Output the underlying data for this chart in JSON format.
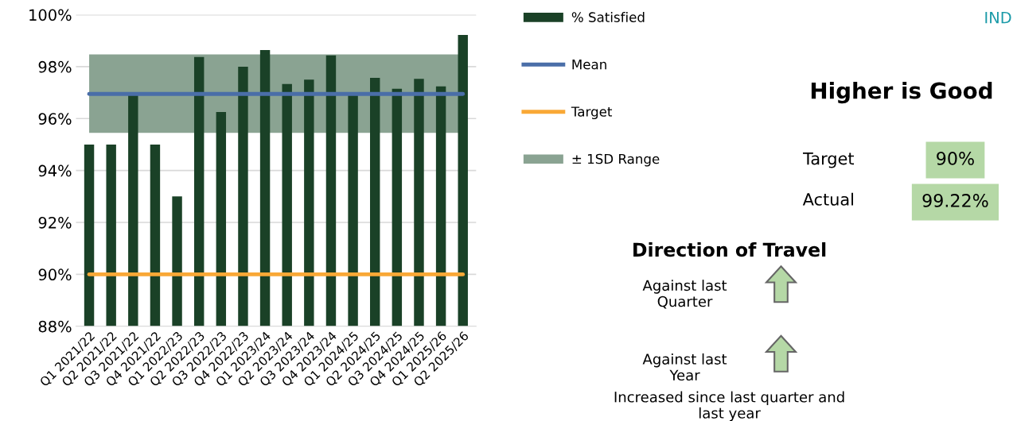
{
  "chart_data": {
    "type": "bar",
    "categories": [
      "Q1 2021/22",
      "Q2 2021/22",
      "Q3 2021/22",
      "Q4 2021/22",
      "Q1 2022/23",
      "Q2 2022/23",
      "Q3 2022/23",
      "Q4 2022/23",
      "Q1 2023/24",
      "Q2 2023/24",
      "Q3 2023/24",
      "Q4 2023/24",
      "Q1 2024/25",
      "Q2 2024/25",
      "Q3 2024/25",
      "Q4 2024/25",
      "Q1 2025/26",
      "Q2 2025/26"
    ],
    "series": [
      {
        "name": "% Satisfied",
        "color": "#1a4127",
        "values": [
          95.0,
          95.0,
          97.0,
          95.0,
          93.0,
          98.37,
          96.25,
          98.0,
          98.64,
          97.33,
          97.5,
          98.43,
          97.0,
          97.57,
          97.15,
          97.53,
          97.24,
          99.22
        ]
      }
    ],
    "ylim": [
      88,
      100
    ],
    "yticks": [
      {
        "value": 88,
        "label": "88%"
      },
      {
        "value": 90,
        "label": "90%"
      },
      {
        "value": 92,
        "label": "92%"
      },
      {
        "value": 94,
        "label": "94%"
      },
      {
        "value": 96,
        "label": "96%"
      },
      {
        "value": 98,
        "label": "98%"
      },
      {
        "value": 100,
        "label": "100%"
      }
    ],
    "ref_lines": [
      {
        "axis": "y",
        "value": 96.95,
        "label": "Mean",
        "color": "#4a6ea8"
      },
      {
        "axis": "y",
        "value": 90,
        "label": "Target",
        "color": "#f9a836"
      }
    ],
    "bands": [
      {
        "axis": "y",
        "from": 95.45,
        "to": 98.47,
        "label": "± 1SD Range",
        "color": "#8aa392"
      }
    ],
    "grid": "y",
    "legend": "right",
    "annotations": [
      "IND",
      "Higher is Good",
      "Target",
      "90%",
      "Actual",
      "99.22%",
      "Direction of Travel",
      "Against last\nQuarter",
      "Against last\nYear",
      "Increased since last quarter and\nlast year"
    ]
  }
}
